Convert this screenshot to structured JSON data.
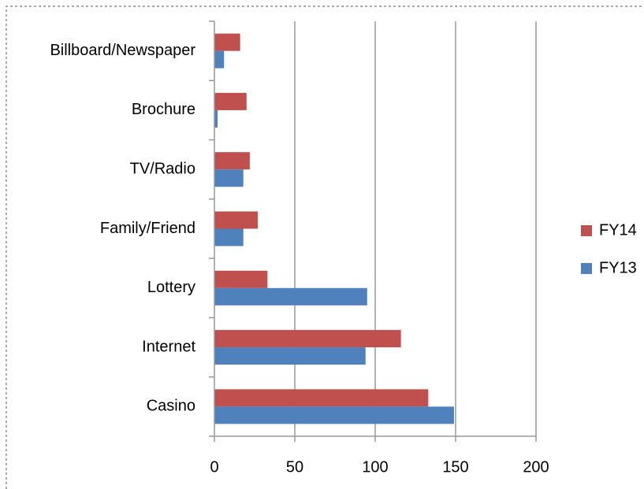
{
  "chart_data": {
    "type": "bar",
    "orientation": "horizontal",
    "categories": [
      "Casino",
      "Internet",
      "Lottery",
      "Family/Friend",
      "TV/Radio",
      "Brochure",
      "Billboard/Newspaper"
    ],
    "series": [
      {
        "name": "FY14",
        "color": "#c0504d",
        "values": [
          133,
          116,
          33,
          27,
          22,
          20,
          16
        ]
      },
      {
        "name": "FY13",
        "color": "#4f81bd",
        "values": [
          149,
          94,
          95,
          18,
          18,
          2,
          6
        ]
      }
    ],
    "xlim": [
      0,
      200
    ],
    "xticks": [
      0,
      50,
      100,
      150,
      200
    ],
    "grid": true,
    "legend": "right"
  }
}
